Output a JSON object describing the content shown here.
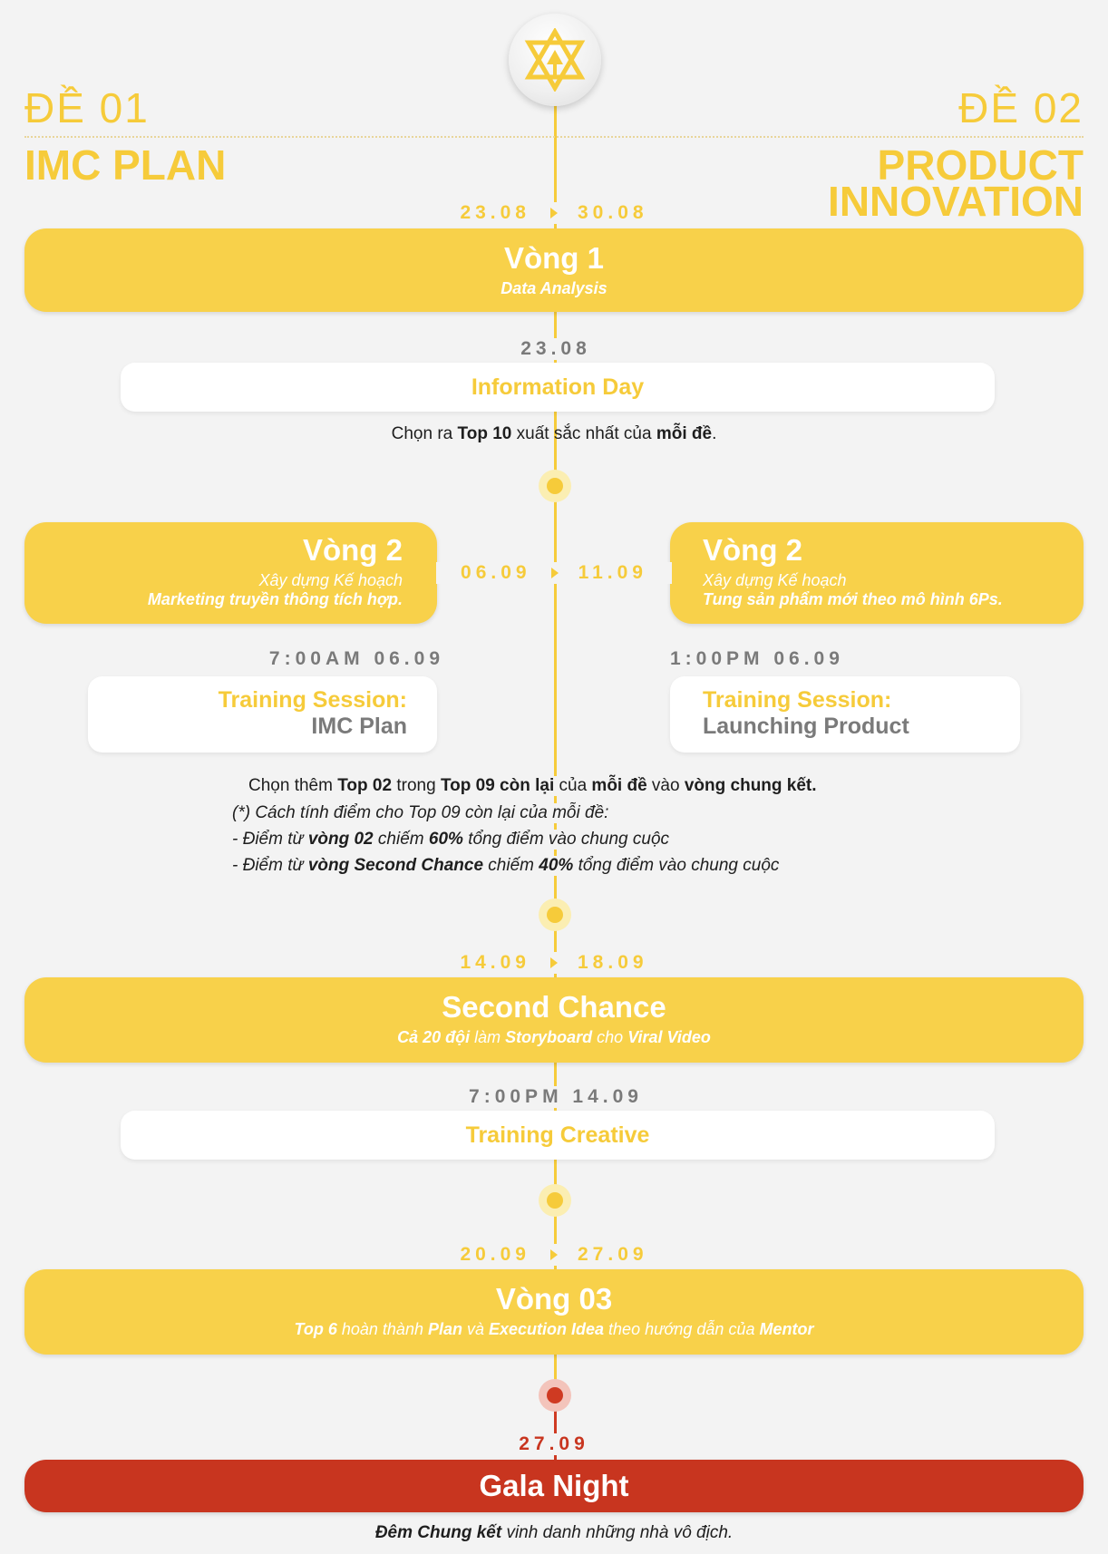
{
  "colors": {
    "accent": "#f6cb3a",
    "red": "#c8351f",
    "gray": "#7a7a7a"
  },
  "header": {
    "left_num": "ĐỀ 01",
    "left_title": "IMC PLAN",
    "right_num": "ĐỀ 02",
    "right_title_1": "PRODUCT",
    "right_title_2": "INNOVATION",
    "logo_icon": "star-logo-icon"
  },
  "round1": {
    "date_start": "23.08",
    "date_end": "30.08",
    "title": "Vòng 1",
    "subtitle": "Data Analysis"
  },
  "info_day": {
    "date": "23.08",
    "title": "Information Day",
    "desc_1": "Chọn ra ",
    "desc_2": "Top 10",
    "desc_3": " xuất sắc nhất của ",
    "desc_4": "mỗi đề",
    "desc_5": "."
  },
  "round2": {
    "date_start": "06.09",
    "date_end": "11.09",
    "left": {
      "title": "Vòng 2",
      "line1": "Xây dựng Kế hoạch",
      "line2": "Marketing truyền thông tích hợp."
    },
    "right": {
      "title": "Vòng 2",
      "line1": "Xây dựng Kế hoạch",
      "line2": "Tung sản phẩm mới theo mô hình 6Ps."
    }
  },
  "training_left": {
    "date": "7:00AM 06.09",
    "line1": "Training Session:",
    "line2": "IMC Plan"
  },
  "training_right": {
    "date": "1:00PM 06.09",
    "line1": "Training Session:",
    "line2": "Launching Product"
  },
  "selection": {
    "p1": "Chọn thêm ",
    "p2": "Top 02",
    "p3": " trong ",
    "p4": "Top 09 còn lại",
    "p5": " của ",
    "p6": "mỗi đề",
    "p7": " vào ",
    "p8": "vòng chung kết.",
    "note0": "(*) Cách tính điểm cho Top 09 còn lại của mỗi đề:",
    "n1a": "- Điểm từ ",
    "n1b": "vòng 02",
    "n1c": " chiếm ",
    "n1d": "60%",
    "n1e": " tổng điểm vào chung cuộc",
    "n2a": "- Điểm từ ",
    "n2b": "vòng Second Chance",
    "n2c": " chiếm ",
    "n2d": "40%",
    "n2e": " tổng điểm vào chung cuộc"
  },
  "second_chance": {
    "date_start": "14.09",
    "date_end": "18.09",
    "title": "Second Chance",
    "s1": "Cả 20 đội",
    "s2": " làm ",
    "s3": "Storyboard",
    "s4": " cho ",
    "s5": "Viral Video"
  },
  "training_creative": {
    "date": "7:00PM 14.09",
    "title": "Training Creative"
  },
  "round3": {
    "date_start": "20.09",
    "date_end": "27.09",
    "title": "Vòng 03",
    "s1": "Top 6",
    "s2": " hoàn thành ",
    "s3": "Plan",
    "s4": " và ",
    "s5": "Execution Idea",
    "s6": " theo hướng dẫn của ",
    "s7": "Mentor"
  },
  "gala": {
    "date": "27.09",
    "title": "Gala Night",
    "d1": "Đêm Chung kết",
    "d2": " vinh danh những nhà vô địch."
  }
}
